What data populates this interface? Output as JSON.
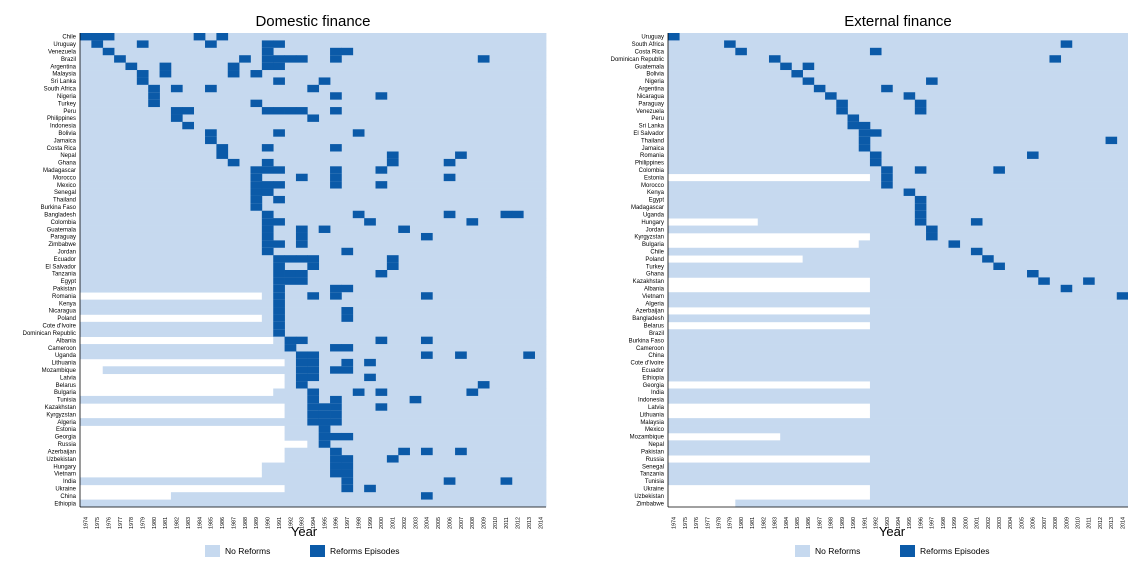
{
  "colors": {
    "no_reform": "#c6d9ef",
    "reform": "#0b5aa8"
  },
  "chart_data": [
    {
      "type": "heatmap",
      "title": "Domestic finance",
      "xlabel": "Year",
      "years": [
        1974,
        1975,
        1976,
        1977,
        1978,
        1979,
        1980,
        1981,
        1982,
        1983,
        1984,
        1985,
        1986,
        1987,
        1988,
        1989,
        1990,
        1991,
        1992,
        1993,
        1994,
        1995,
        1996,
        1997,
        1998,
        1999,
        2000,
        2001,
        2002,
        2003,
        2004,
        2005,
        2006,
        2007,
        2008,
        2009,
        2010,
        2011,
        2012,
        2013,
        2014
      ],
      "legend": [
        "No Reforms",
        "Reforms Episodes"
      ],
      "rows": [
        {
          "c": "Chile",
          "s": 1974,
          "r": [
            1974,
            1975,
            1976,
            1984,
            1986
          ]
        },
        {
          "c": "Uruguay",
          "s": 1974,
          "r": [
            1975,
            1979,
            1985,
            1990,
            1991
          ]
        },
        {
          "c": "Venezuela",
          "s": 1974,
          "r": [
            1976,
            1990,
            1996,
            1997
          ]
        },
        {
          "c": "Brazil",
          "s": 1974,
          "r": [
            1977,
            1988,
            1990,
            1991,
            1992,
            1993,
            1996,
            2009
          ]
        },
        {
          "c": "Argentina",
          "s": 1974,
          "r": [
            1978,
            1981,
            1987,
            1990,
            1991
          ]
        },
        {
          "c": "Malaysia",
          "s": 1974,
          "r": [
            1979,
            1981,
            1987,
            1989
          ]
        },
        {
          "c": "Sri Lanka",
          "s": 1974,
          "r": [
            1979,
            1991,
            1995
          ]
        },
        {
          "c": "South Africa",
          "s": 1974,
          "r": [
            1980,
            1982,
            1985,
            1994
          ]
        },
        {
          "c": "Nigeria",
          "s": 1974,
          "r": [
            1980,
            1996,
            2000
          ]
        },
        {
          "c": "Turkey",
          "s": 1974,
          "r": [
            1980,
            1989
          ]
        },
        {
          "c": "Peru",
          "s": 1974,
          "r": [
            1982,
            1983,
            1990,
            1991,
            1992,
            1993,
            1996
          ]
        },
        {
          "c": "Philippines",
          "s": 1974,
          "r": [
            1982,
            1994
          ]
        },
        {
          "c": "Indonesia",
          "s": 1974,
          "r": [
            1983
          ]
        },
        {
          "c": "Bolivia",
          "s": 1974,
          "r": [
            1985,
            1991,
            1998
          ]
        },
        {
          "c": "Jamaica",
          "s": 1974,
          "r": [
            1985
          ]
        },
        {
          "c": "Costa Rica",
          "s": 1974,
          "r": [
            1986,
            1990,
            1996
          ]
        },
        {
          "c": "Nepal",
          "s": 1974,
          "r": [
            1986,
            2001,
            2007
          ]
        },
        {
          "c": "Ghana",
          "s": 1974,
          "r": [
            1987,
            1990,
            2001,
            2006
          ]
        },
        {
          "c": "Madagascar",
          "s": 1974,
          "r": [
            1989,
            1990,
            1991,
            1996,
            2000
          ]
        },
        {
          "c": "Morocco",
          "s": 1974,
          "r": [
            1989,
            1993,
            1996,
            2006
          ]
        },
        {
          "c": "Mexico",
          "s": 1974,
          "r": [
            1989,
            1990,
            1991,
            1996,
            2000
          ]
        },
        {
          "c": "Senegal",
          "s": 1974,
          "r": [
            1989,
            1990
          ]
        },
        {
          "c": "Thailand",
          "s": 1974,
          "r": [
            1989,
            1991
          ]
        },
        {
          "c": "Burkina Faso",
          "s": 1974,
          "r": [
            1989
          ]
        },
        {
          "c": "Bangladesh",
          "s": 1974,
          "r": [
            1990,
            1998,
            2006,
            2011,
            2012
          ]
        },
        {
          "c": "Colombia",
          "s": 1974,
          "r": [
            1990,
            1991,
            1999,
            2008
          ]
        },
        {
          "c": "Guatemala",
          "s": 1974,
          "r": [
            1990,
            1993,
            1995,
            2002
          ]
        },
        {
          "c": "Paraguay",
          "s": 1974,
          "r": [
            1990,
            1993,
            2004
          ]
        },
        {
          "c": "Zimbabwe",
          "s": 1974,
          "r": [
            1990,
            1991,
            1993
          ]
        },
        {
          "c": "Jordan",
          "s": 1974,
          "r": [
            1990,
            1997
          ]
        },
        {
          "c": "Ecuador",
          "s": 1974,
          "r": [
            1991,
            1992,
            1993,
            1994,
            2001
          ]
        },
        {
          "c": "El Salvador",
          "s": 1974,
          "r": [
            1991,
            1994,
            2001
          ]
        },
        {
          "c": "Tanzania",
          "s": 1974,
          "r": [
            1991,
            1992,
            1993,
            2000
          ]
        },
        {
          "c": "Egypt",
          "s": 1974,
          "r": [
            1991,
            1992,
            1993
          ]
        },
        {
          "c": "Pakistan",
          "s": 1974,
          "r": [
            1991,
            1996,
            1997
          ]
        },
        {
          "c": "Romania",
          "s": 1990,
          "r": [
            1991,
            1994,
            1996,
            2004
          ]
        },
        {
          "c": "Kenya",
          "s": 1974,
          "r": [
            1991
          ]
        },
        {
          "c": "Nicaragua",
          "s": 1974,
          "r": [
            1991,
            1997
          ]
        },
        {
          "c": "Poland",
          "s": 1990,
          "r": [
            1991,
            1997
          ]
        },
        {
          "c": "Cote d'Ivoire",
          "s": 1974,
          "r": [
            1991
          ]
        },
        {
          "c": "Dominican Republic",
          "s": 1974,
          "r": [
            1991
          ]
        },
        {
          "c": "Albania",
          "s": 1991,
          "r": [
            1992,
            1993,
            2000,
            2004
          ]
        },
        {
          "c": "Cameroon",
          "s": 1974,
          "r": [
            1992,
            1996,
            1997
          ]
        },
        {
          "c": "Uganda",
          "s": 1974,
          "r": [
            1993,
            1994,
            2004,
            2007,
            2013
          ]
        },
        {
          "c": "Lithuania",
          "s": 1992,
          "r": [
            1993,
            1994,
            1997,
            1999
          ]
        },
        {
          "c": "Mozambique",
          "s": 1976,
          "r": [
            1993,
            1994,
            1996,
            1997
          ]
        },
        {
          "c": "Latvia",
          "s": 1992,
          "r": [
            1993,
            1994,
            1999
          ]
        },
        {
          "c": "Belarus",
          "s": 1992,
          "r": [
            1993,
            2009
          ]
        },
        {
          "c": "Bulgaria",
          "s": 1991,
          "r": [
            1994,
            1998,
            2000,
            2008
          ]
        },
        {
          "c": "Tunisia",
          "s": 1974,
          "r": [
            1994,
            1996,
            2003
          ]
        },
        {
          "c": "Kazakhstan",
          "s": 1992,
          "r": [
            1994,
            1995,
            1996,
            2000
          ]
        },
        {
          "c": "Kyrgyzstan",
          "s": 1992,
          "r": [
            1994,
            1995,
            1996
          ]
        },
        {
          "c": "Algeria",
          "s": 1974,
          "r": [
            1994,
            1995,
            1996
          ]
        },
        {
          "c": "Estonia",
          "s": 1992,
          "r": [
            1995
          ]
        },
        {
          "c": "Georgia",
          "s": 1992,
          "r": [
            1995,
            1996,
            1997
          ]
        },
        {
          "c": "Russia",
          "s": 1994,
          "r": [
            1995
          ]
        },
        {
          "c": "Azerbaijan",
          "s": 1992,
          "r": [
            1996,
            2002,
            2004,
            2007
          ]
        },
        {
          "c": "Uzbekistan",
          "s": 1992,
          "r": [
            1996,
            1997,
            2001
          ]
        },
        {
          "c": "Hungary",
          "s": 1990,
          "r": [
            1996,
            1997
          ]
        },
        {
          "c": "Vietnam",
          "s": 1990,
          "r": [
            1996,
            1997
          ]
        },
        {
          "c": "India",
          "s": 1974,
          "r": [
            1997,
            2006,
            2011
          ]
        },
        {
          "c": "Ukraine",
          "s": 1992,
          "r": [
            1997,
            1999
          ]
        },
        {
          "c": "China",
          "s": 1982,
          "r": [
            2004
          ]
        },
        {
          "c": "Ethiopia",
          "s": 1974,
          "r": []
        }
      ]
    },
    {
      "type": "heatmap",
      "title": "External finance",
      "xlabel": "Year",
      "years": [
        1974,
        1975,
        1976,
        1977,
        1978,
        1979,
        1980,
        1981,
        1982,
        1983,
        1984,
        1985,
        1986,
        1987,
        1988,
        1989,
        1990,
        1991,
        1992,
        1993,
        1994,
        1995,
        1996,
        1997,
        1998,
        1999,
        2000,
        2001,
        2002,
        2003,
        2004,
        2005,
        2006,
        2007,
        2008,
        2009,
        2010,
        2011,
        2012,
        2013,
        2014
      ],
      "legend": [
        "No Reforms",
        "Reforms Episodes"
      ],
      "rows": [
        {
          "c": "Uruguay",
          "s": 1974,
          "r": [
            1974
          ]
        },
        {
          "c": "South Africa",
          "s": 1974,
          "r": [
            1979,
            2009
          ]
        },
        {
          "c": "Costa Rica",
          "s": 1974,
          "r": [
            1980,
            1992
          ]
        },
        {
          "c": "Dominican Republic",
          "s": 1974,
          "r": [
            1983,
            2008
          ]
        },
        {
          "c": "Guatemala",
          "s": 1974,
          "r": [
            1984,
            1986
          ]
        },
        {
          "c": "Bolivia",
          "s": 1974,
          "r": [
            1985
          ]
        },
        {
          "c": "Nigeria",
          "s": 1974,
          "r": [
            1986,
            1997
          ]
        },
        {
          "c": "Argentina",
          "s": 1974,
          "r": [
            1987,
            1993
          ]
        },
        {
          "c": "Nicaragua",
          "s": 1974,
          "r": [
            1988,
            1995
          ]
        },
        {
          "c": "Paraguay",
          "s": 1974,
          "r": [
            1989,
            1996
          ]
        },
        {
          "c": "Venezuela",
          "s": 1974,
          "r": [
            1989,
            1996
          ]
        },
        {
          "c": "Peru",
          "s": 1974,
          "r": [
            1990
          ]
        },
        {
          "c": "Sri Lanka",
          "s": 1974,
          "r": [
            1990,
            1991
          ]
        },
        {
          "c": "El Salvador",
          "s": 1974,
          "r": [
            1991,
            1992
          ]
        },
        {
          "c": "Thailand",
          "s": 1974,
          "r": [
            1991,
            2013
          ]
        },
        {
          "c": "Jamaica",
          "s": 1974,
          "r": [
            1991
          ]
        },
        {
          "c": "Romania",
          "s": 1974,
          "r": [
            1992,
            2006
          ]
        },
        {
          "c": "Philippines",
          "s": 1974,
          "r": [
            1992
          ]
        },
        {
          "c": "Colombia",
          "s": 1974,
          "r": [
            1993,
            1996,
            2003
          ]
        },
        {
          "c": "Estonia",
          "s": 1992,
          "r": [
            1993
          ]
        },
        {
          "c": "Morocco",
          "s": 1974,
          "r": [
            1993
          ]
        },
        {
          "c": "Kenya",
          "s": 1974,
          "r": [
            1995
          ]
        },
        {
          "c": "Egypt",
          "s": 1974,
          "r": [
            1996
          ]
        },
        {
          "c": "Madagascar",
          "s": 1974,
          "r": [
            1996
          ]
        },
        {
          "c": "Uganda",
          "s": 1974,
          "r": [
            1996
          ]
        },
        {
          "c": "Hungary",
          "s": 1982,
          "r": [
            1996,
            2001
          ]
        },
        {
          "c": "Jordan",
          "s": 1974,
          "r": [
            1997
          ]
        },
        {
          "c": "Kyrgyzstan",
          "s": 1992,
          "r": [
            1997
          ]
        },
        {
          "c": "Bulgaria",
          "s": 1991,
          "r": [
            1999
          ]
        },
        {
          "c": "Chile",
          "s": 1974,
          "r": [
            2001
          ]
        },
        {
          "c": "Poland",
          "s": 1986,
          "r": [
            2002
          ]
        },
        {
          "c": "Turkey",
          "s": 1974,
          "r": [
            2003
          ]
        },
        {
          "c": "Ghana",
          "s": 1974,
          "r": [
            2006
          ]
        },
        {
          "c": "Kazakhstan",
          "s": 1992,
          "r": [
            2007,
            2011
          ]
        },
        {
          "c": "Albania",
          "s": 1992,
          "r": [
            2009
          ]
        },
        {
          "c": "Vietnam",
          "s": 1974,
          "r": [
            2014
          ]
        },
        {
          "c": "Algeria",
          "s": 1974,
          "r": []
        },
        {
          "c": "Azerbaijan",
          "s": 1992,
          "r": []
        },
        {
          "c": "Bangladesh",
          "s": 1974,
          "r": []
        },
        {
          "c": "Belarus",
          "s": 1992,
          "r": []
        },
        {
          "c": "Brazil",
          "s": 1974,
          "r": []
        },
        {
          "c": "Burkina Faso",
          "s": 1974,
          "r": []
        },
        {
          "c": "Cameroon",
          "s": 1974,
          "r": []
        },
        {
          "c": "China",
          "s": 1974,
          "r": []
        },
        {
          "c": "Cote d'Ivoire",
          "s": 1974,
          "r": []
        },
        {
          "c": "Ecuador",
          "s": 1974,
          "r": []
        },
        {
          "c": "Ethiopia",
          "s": 1974,
          "r": []
        },
        {
          "c": "Georgia",
          "s": 1992,
          "r": []
        },
        {
          "c": "India",
          "s": 1974,
          "r": []
        },
        {
          "c": "Indonesia",
          "s": 1974,
          "r": []
        },
        {
          "c": "Latvia",
          "s": 1992,
          "r": []
        },
        {
          "c": "Lithuania",
          "s": 1992,
          "r": []
        },
        {
          "c": "Malaysia",
          "s": 1974,
          "r": []
        },
        {
          "c": "Mexico",
          "s": 1974,
          "r": []
        },
        {
          "c": "Mozambique",
          "s": 1984,
          "r": []
        },
        {
          "c": "Nepal",
          "s": 1974,
          "r": []
        },
        {
          "c": "Pakistan",
          "s": 1974,
          "r": []
        },
        {
          "c": "Russia",
          "s": 1992,
          "r": []
        },
        {
          "c": "Senegal",
          "s": 1974,
          "r": []
        },
        {
          "c": "Tanzania",
          "s": 1974,
          "r": []
        },
        {
          "c": "Tunisia",
          "s": 1974,
          "r": []
        },
        {
          "c": "Ukraine",
          "s": 1992,
          "r": []
        },
        {
          "c": "Uzbekistan",
          "s": 1992,
          "r": []
        },
        {
          "c": "Zimbabwe",
          "s": 1980,
          "r": []
        }
      ]
    }
  ]
}
